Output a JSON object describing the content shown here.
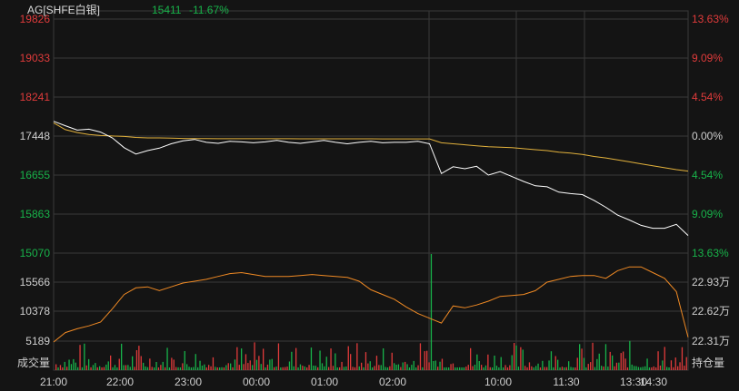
{
  "header": {
    "symbol": "AG[SHFE白银]",
    "price": "15411",
    "change": "-11.67%"
  },
  "colors": {
    "background": "#141414",
    "grid": "#3a3a3a",
    "price_line": "#ffffff",
    "avg_line": "#e3b23c",
    "oi_line": "#f08a24",
    "up": "#e03b3b",
    "down": "#18b34a",
    "neutral_text": "#cfcfcf",
    "header_text": "#d9d9d9"
  },
  "price_axis": {
    "left_ticks": [
      "19826",
      "19033",
      "18241",
      "17448",
      "16655",
      "15863",
      "15070"
    ],
    "right_ticks": [
      "13.63%",
      "9.09%",
      "4.54%",
      "0.00%",
      "4.54%",
      "9.09%",
      "13.63%"
    ]
  },
  "volume_axis": {
    "left_ticks": [
      "15566",
      "10378",
      "5189"
    ],
    "left_bottom_label": "成交量",
    "right_ticks": [
      "22.93万",
      "22.62万",
      "22.31万"
    ],
    "right_bottom_label": "持仓量"
  },
  "time_axis": {
    "ticks": [
      "21:00",
      "22:00",
      "23:00",
      "00:00",
      "01:00",
      "02:00",
      "10:00",
      "11:30",
      "13:30",
      "14:30"
    ]
  },
  "chart_data": {
    "type": "line",
    "ylim": [
      15070,
      19826
    ],
    "prev_close": 17448,
    "series": [
      {
        "role": "price",
        "values": [
          17750,
          17660,
          17570,
          17590,
          17530,
          17410,
          17210,
          17080,
          17150,
          17200,
          17290,
          17350,
          17380,
          17320,
          17300,
          17340,
          17330,
          17310,
          17330,
          17360,
          17320,
          17300,
          17330,
          17360,
          17320,
          17290,
          17320,
          17340,
          17310,
          17320,
          17320,
          17340,
          17290,
          16680,
          16820,
          16780,
          16830,
          16650,
          16720,
          16620,
          16520,
          16430,
          16410,
          16300,
          16270,
          16250,
          16130,
          15990,
          15830,
          15730,
          15620,
          15560,
          15560,
          15640,
          15411
        ]
      },
      {
        "role": "average",
        "values": [
          17720,
          17580,
          17520,
          17480,
          17460,
          17450,
          17440,
          17420,
          17410,
          17410,
          17405,
          17400,
          17398,
          17396,
          17395,
          17395,
          17395,
          17394,
          17394,
          17394,
          17394,
          17393,
          17393,
          17393,
          17392,
          17392,
          17392,
          17392,
          17391,
          17391,
          17390,
          17390,
          17390,
          17310,
          17290,
          17270,
          17250,
          17230,
          17220,
          17210,
          17190,
          17170,
          17150,
          17120,
          17100,
          17070,
          17030,
          17000,
          16960,
          16920,
          16880,
          16840,
          16800,
          16760,
          16730
        ]
      }
    ],
    "open_interest": [
      22.3,
      22.4,
      22.44,
      22.47,
      22.51,
      22.65,
      22.8,
      22.87,
      22.88,
      22.84,
      22.88,
      22.92,
      22.94,
      22.96,
      22.99,
      23.02,
      23.03,
      23.01,
      22.99,
      22.99,
      22.99,
      23.0,
      23.01,
      23.0,
      22.99,
      22.98,
      22.94,
      22.85,
      22.8,
      22.75,
      22.67,
      22.6,
      22.55,
      22.5,
      22.68,
      22.66,
      22.69,
      22.73,
      22.78,
      22.79,
      22.8,
      22.84,
      22.93,
      22.96,
      22.99,
      23.0,
      23.0,
      22.97,
      23.05,
      23.09,
      23.09,
      23.03,
      22.97,
      22.83,
      22.35
    ]
  }
}
